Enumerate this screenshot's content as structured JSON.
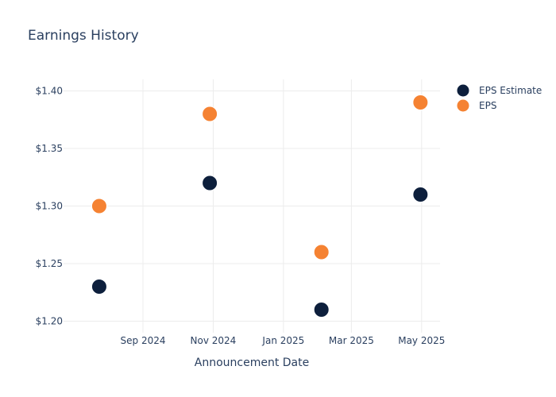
{
  "chart_data": {
    "type": "scatter",
    "title": "Earnings History",
    "xlabel": "Announcement Date",
    "ylabel": "",
    "x_ticks": [
      {
        "date": "2024-09-01",
        "label": "Sep 2024"
      },
      {
        "date": "2024-11-01",
        "label": "Nov 2024"
      },
      {
        "date": "2025-01-01",
        "label": "Jan 2025"
      },
      {
        "date": "2025-03-01",
        "label": "Mar 2025"
      },
      {
        "date": "2025-05-01",
        "label": "May 2025"
      }
    ],
    "xlim": [
      "2024-06-24",
      "2025-05-17"
    ],
    "y_ticks": [
      {
        "value": 1.2,
        "label": "$1.20"
      },
      {
        "value": 1.25,
        "label": "$1.25"
      },
      {
        "value": 1.3,
        "label": "$1.30"
      },
      {
        "value": 1.35,
        "label": "$1.35"
      },
      {
        "value": 1.4,
        "label": "$1.40"
      }
    ],
    "ylim": [
      1.19,
      1.41
    ],
    "grid": true,
    "legend_position": "top-right",
    "series": [
      {
        "name": "EPS Estimate",
        "color": "#0d1f3c",
        "points": [
          {
            "x": "2024-07-25",
            "y": 1.23
          },
          {
            "x": "2024-10-29",
            "y": 1.32
          },
          {
            "x": "2025-02-03",
            "y": 1.21
          },
          {
            "x": "2025-04-30",
            "y": 1.31
          }
        ]
      },
      {
        "name": "EPS",
        "color": "#f58232",
        "points": [
          {
            "x": "2024-07-25",
            "y": 1.3
          },
          {
            "x": "2024-10-29",
            "y": 1.38
          },
          {
            "x": "2025-02-03",
            "y": 1.26
          },
          {
            "x": "2025-04-30",
            "y": 1.39
          }
        ]
      }
    ]
  }
}
